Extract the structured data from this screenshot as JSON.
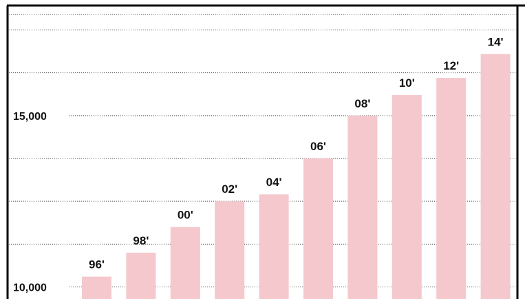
{
  "chart_data": {
    "type": "bar",
    "categories": [
      "96'",
      "98'",
      "00'",
      "02'",
      "04'",
      "06'",
      "08'",
      "10'",
      "12'",
      "14'"
    ],
    "values": [
      10300,
      11000,
      11750,
      12500,
      12700,
      13750,
      15000,
      15600,
      16100,
      16800
    ],
    "ylim": [
      9500,
      18000
    ],
    "yticks": [
      10000,
      11250,
      12500,
      13750,
      15000,
      16250,
      17500
    ],
    "ytick_labels": {
      "10000": "10,000",
      "15000": "15,000"
    },
    "bar_labels": [
      "96'",
      "98'",
      "00'",
      "02'",
      "04'",
      "06'",
      "08'",
      "10'",
      "12'",
      "14'"
    ],
    "title": "",
    "xlabel": "",
    "ylabel": "",
    "grid": true,
    "colors": {
      "bar": "#f4c8cc",
      "grid": "#444444",
      "text": "#111111",
      "border": "#000000"
    }
  }
}
